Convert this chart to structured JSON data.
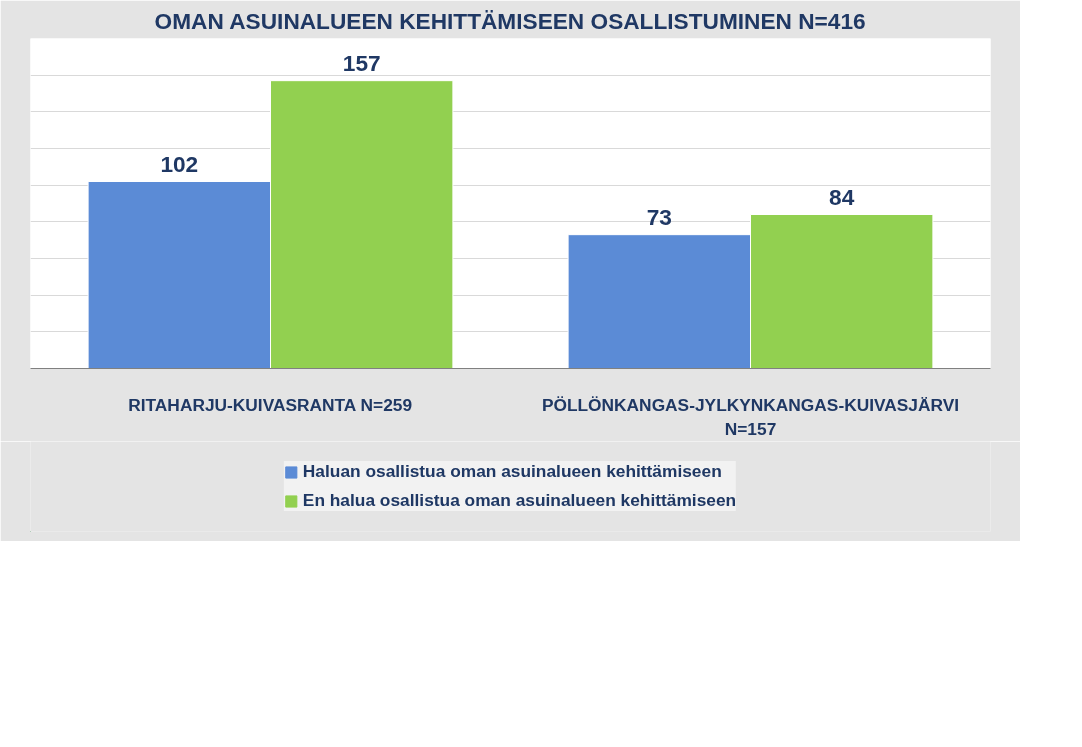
{
  "chart_data": {
    "type": "bar",
    "title": "OMAN ASUINALUEEN KEHITTÄMISEEN OSALLISTUMINEN N=416",
    "categories": [
      "RITAHARJU-KUIVASRANTA N=259",
      "PÖLLÖNKANGAS-JYLKYNKANGAS-KUIVASJÄRVI N=157"
    ],
    "series": [
      {
        "name": "Haluan osallistua oman asuinalueen kehittämiseen",
        "color": "#5b8bd6",
        "values": [
          102,
          73
        ]
      },
      {
        "name": "En halua osallistua oman asuinalueen kehittämiseen",
        "color": "#92d050",
        "values": [
          157,
          84
        ]
      }
    ],
    "ylim": [
      0,
      180
    ],
    "yticks": [
      {
        "value": 0,
        "label": null
      },
      {
        "value": 20,
        "label": null
      },
      {
        "value": 40,
        "label": null
      },
      {
        "value": 60,
        "label": null
      },
      {
        "value": 80,
        "label": null
      },
      {
        "value": 100,
        "label": null
      },
      {
        "value": 120,
        "label": null
      },
      {
        "value": 140,
        "label": null
      },
      {
        "value": 160,
        "label": null
      },
      {
        "value": 180,
        "label": null
      }
    ],
    "grid": "y",
    "legend": "bottom",
    "tick_labels": "x",
    "data_labels": true
  }
}
